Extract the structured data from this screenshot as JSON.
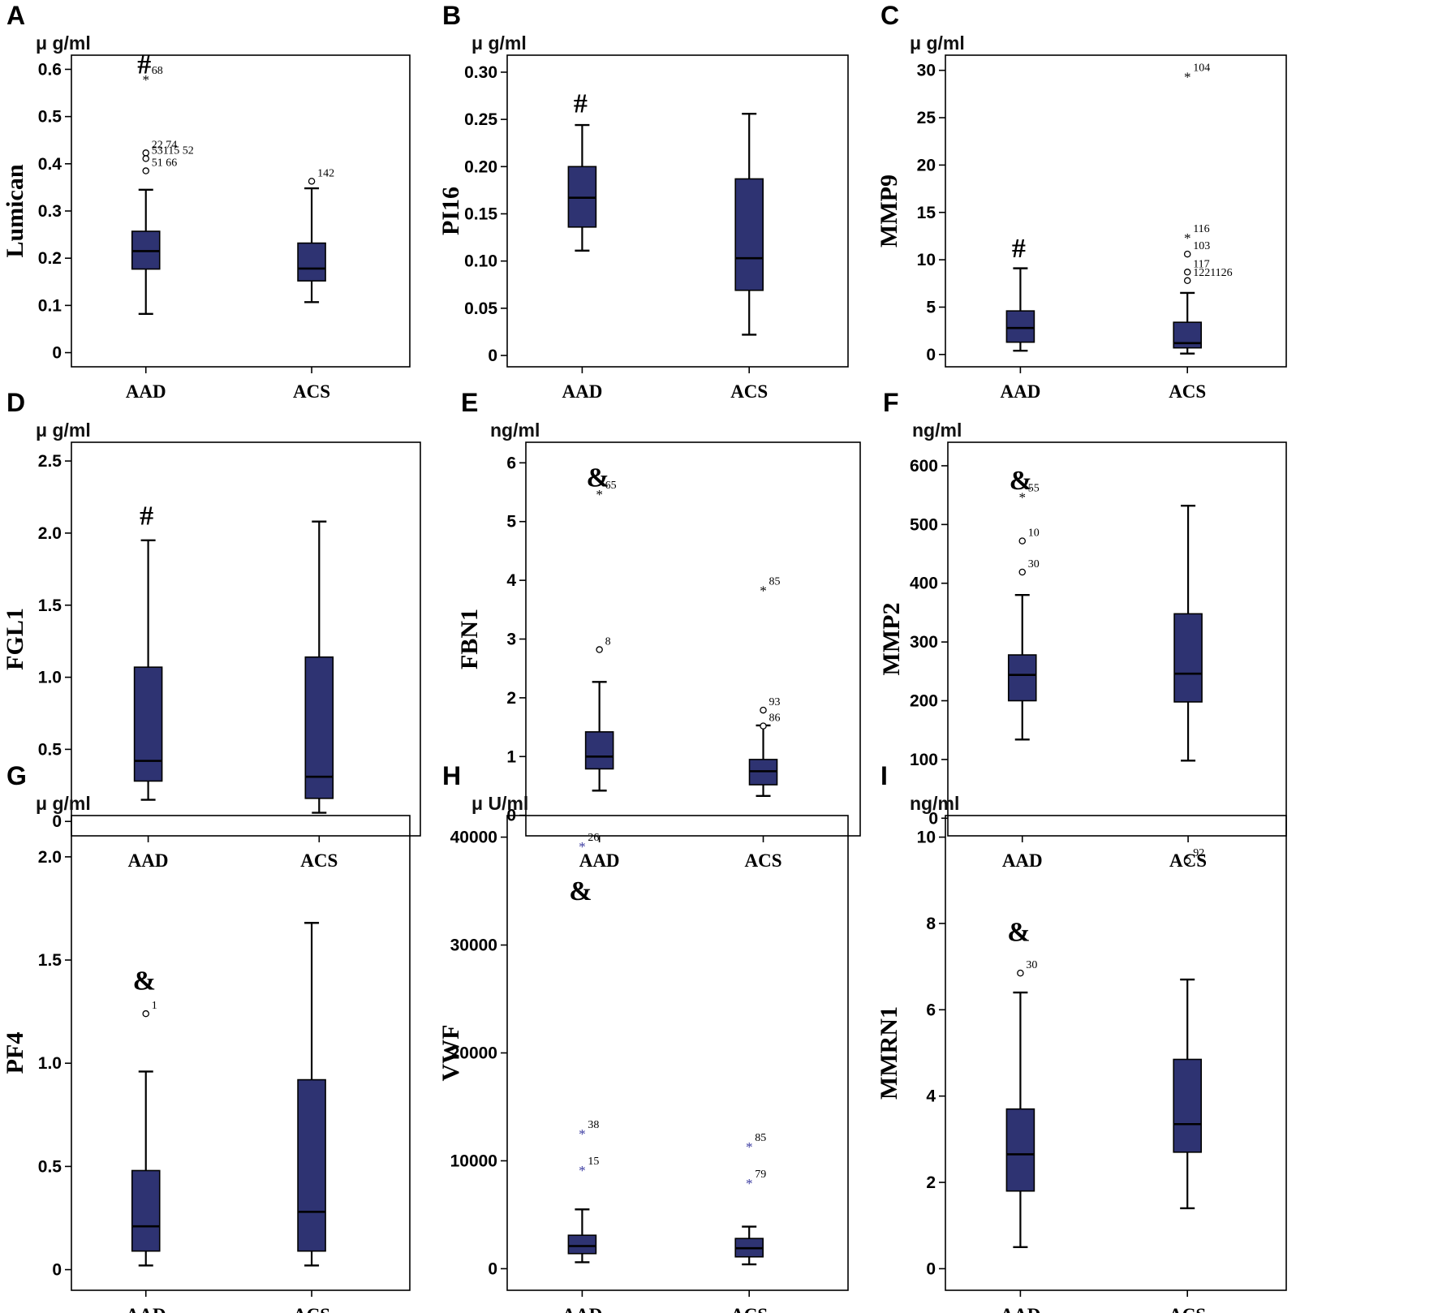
{
  "colors": {
    "box_fill": "#2e3372",
    "frame": "#000000",
    "background": "#ffffff",
    "star_blue": "#3a3aa0"
  },
  "categories": [
    "AAD",
    "ACS"
  ],
  "chart_data": [
    {
      "type": "box",
      "panel": "A",
      "unit": "μ g/ml",
      "ylabel": "Lumican",
      "ylim": [
        -0.03,
        0.63
      ],
      "yticks": [
        0,
        0.1,
        0.2,
        0.3,
        0.4,
        0.5,
        0.6
      ],
      "ytick_labels": [
        "0",
        "0.1",
        "0.2",
        "0.3",
        "0.4",
        "0.5",
        "0.6"
      ],
      "boxes": [
        {
          "category": "AAD",
          "whisker_low": 0.082,
          "q1": 0.177,
          "median": 0.215,
          "q3": 0.257,
          "whisker_high": 0.345,
          "outliers": [
            {
              "value": 0.58,
              "marker": "star",
              "label": "68"
            },
            {
              "value": 0.423,
              "marker": "circle",
              "label": "22   74"
            },
            {
              "value": 0.411,
              "marker": "circle",
              "label": "53115 52"
            },
            {
              "value": 0.385,
              "marker": "circle",
              "label": "51   66"
            }
          ],
          "significance": "#",
          "significance_value": 0.61
        },
        {
          "category": "ACS",
          "whisker_low": 0.107,
          "q1": 0.152,
          "median": 0.178,
          "q3": 0.232,
          "whisker_high": 0.348,
          "outliers": [
            {
              "value": 0.363,
              "marker": "circle",
              "label": "142"
            }
          ]
        }
      ]
    },
    {
      "type": "box",
      "panel": "B",
      "unit": "μ g/ml",
      "ylabel": "PI16",
      "ylim": [
        -0.012,
        0.318
      ],
      "yticks": [
        0,
        0.05,
        0.1,
        0.15,
        0.2,
        0.25,
        0.3
      ],
      "ytick_labels": [
        "0",
        "0.05",
        "0.10",
        "0.15",
        "0.20",
        "0.25",
        "0.30"
      ],
      "boxes": [
        {
          "category": "AAD",
          "whisker_low": 0.111,
          "q1": 0.136,
          "median": 0.167,
          "q3": 0.2,
          "whisker_high": 0.244,
          "outliers": [],
          "significance": "#",
          "significance_value": 0.267
        },
        {
          "category": "ACS",
          "whisker_low": 0.022,
          "q1": 0.069,
          "median": 0.103,
          "q3": 0.187,
          "whisker_high": 0.256,
          "outliers": []
        }
      ]
    },
    {
      "type": "box",
      "panel": "C",
      "unit": "μ g/ml",
      "ylabel": "MMP9",
      "ylim": [
        -1.3,
        31.6
      ],
      "yticks": [
        0,
        5,
        10,
        15,
        20,
        25,
        30
      ],
      "ytick_labels": [
        "0",
        "5",
        "10",
        "15",
        "20",
        "25",
        "30"
      ],
      "boxes": [
        {
          "category": "AAD",
          "whisker_low": 0.4,
          "q1": 1.3,
          "median": 2.8,
          "q3": 4.6,
          "whisker_high": 9.1,
          "outliers": [],
          "significance": "#",
          "significance_value": 11.2
        },
        {
          "category": "ACS",
          "whisker_low": 0.1,
          "q1": 0.7,
          "median": 1.2,
          "q3": 3.4,
          "whisker_high": 6.5,
          "outliers": [
            {
              "value": 29.4,
              "marker": "star",
              "label": "104"
            },
            {
              "value": 12.4,
              "marker": "star",
              "label": "116"
            },
            {
              "value": 10.6,
              "marker": "circle",
              "label": "103"
            },
            {
              "value": 8.7,
              "marker": "circle",
              "label": "117"
            },
            {
              "value": 7.8,
              "marker": "circle",
              "label": "1221126"
            }
          ]
        }
      ]
    },
    {
      "type": "box",
      "panel": "D",
      "unit": "μ g/ml",
      "ylabel": "FGL1",
      "ylim": [
        -0.1,
        2.63
      ],
      "yticks": [
        0,
        0.5,
        1.0,
        1.5,
        2.0,
        2.5
      ],
      "ytick_labels": [
        "0",
        "0.5",
        "1.0",
        "1.5",
        "2.0",
        "2.5"
      ],
      "boxes": [
        {
          "category": "AAD",
          "whisker_low": 0.15,
          "q1": 0.28,
          "median": 0.42,
          "q3": 1.07,
          "whisker_high": 1.95,
          "outliers": [],
          "significance": "#",
          "significance_value": 2.12
        },
        {
          "category": "ACS",
          "whisker_low": 0.06,
          "q1": 0.16,
          "median": 0.31,
          "q3": 1.14,
          "whisker_high": 2.08,
          "outliers": []
        }
      ]
    },
    {
      "type": "box",
      "panel": "E",
      "unit": "ng/ml",
      "ylabel": "FBN1",
      "ylim": [
        -0.35,
        6.35
      ],
      "yticks": [
        0,
        1,
        2,
        3,
        4,
        5,
        6
      ],
      "ytick_labels": [
        "0",
        "1",
        "2",
        "3",
        "4",
        "5",
        "6"
      ],
      "boxes": [
        {
          "category": "AAD",
          "whisker_low": 0.42,
          "q1": 0.79,
          "median": 1.0,
          "q3": 1.42,
          "whisker_high": 2.27,
          "outliers": [
            {
              "value": 5.48,
              "marker": "star",
              "label": "65"
            },
            {
              "value": 2.82,
              "marker": "circle",
              "label": "8"
            }
          ],
          "significance": "&",
          "significance_value": 5.75
        },
        {
          "category": "ACS",
          "whisker_low": 0.33,
          "q1": 0.52,
          "median": 0.75,
          "q3": 0.95,
          "whisker_high": 1.53,
          "outliers": [
            {
              "value": 3.84,
              "marker": "star",
              "label": "85"
            },
            {
              "value": 1.79,
              "marker": "circle",
              "label": "93"
            },
            {
              "value": 1.52,
              "marker": "circle",
              "label": "86"
            }
          ]
        }
      ]
    },
    {
      "type": "box",
      "panel": "F",
      "unit": "ng/ml",
      "ylabel": "MMP2",
      "ylim": [
        -30,
        640
      ],
      "yticks": [
        0,
        100,
        200,
        300,
        400,
        500,
        600
      ],
      "ytick_labels": [
        "0",
        "100",
        "200",
        "300",
        "400",
        "500",
        "600"
      ],
      "boxes": [
        {
          "category": "AAD",
          "whisker_low": 134,
          "q1": 200,
          "median": 244,
          "q3": 278,
          "whisker_high": 380,
          "outliers": [
            {
              "value": 548,
              "marker": "star",
              "label": "55"
            },
            {
              "value": 472,
              "marker": "circle",
              "label": "10"
            },
            {
              "value": 419,
              "marker": "circle",
              "label": "30"
            }
          ],
          "significance": "&",
          "significance_value": 575
        },
        {
          "category": "ACS",
          "whisker_low": 98,
          "q1": 198,
          "median": 246,
          "q3": 348,
          "whisker_high": 532,
          "outliers": []
        }
      ]
    },
    {
      "type": "box",
      "panel": "G",
      "unit": "μ g/ml",
      "ylabel": "PF4",
      "ylim": [
        -0.1,
        2.2
      ],
      "yticks": [
        0,
        0.5,
        1.0,
        1.5,
        2.0
      ],
      "ytick_labels": [
        "0",
        "0.5",
        "1.0",
        "1.5",
        "2.0"
      ],
      "boxes": [
        {
          "category": "AAD",
          "whisker_low": 0.02,
          "q1": 0.09,
          "median": 0.21,
          "q3": 0.48,
          "whisker_high": 0.96,
          "outliers": [
            {
              "value": 1.24,
              "marker": "circle",
              "label": "1"
            }
          ],
          "significance": "&",
          "significance_value": 1.4
        },
        {
          "category": "ACS",
          "whisker_low": 0.02,
          "q1": 0.09,
          "median": 0.28,
          "q3": 0.92,
          "whisker_high": 1.68,
          "outliers": []
        }
      ]
    },
    {
      "type": "box",
      "panel": "H",
      "unit": "μ U/ml",
      "ylabel": "VWF",
      "ylim": [
        -2000,
        42000
      ],
      "yticks": [
        0,
        10000,
        20000,
        30000,
        40000
      ],
      "ytick_labels": [
        "0",
        "10000",
        "20000",
        "30000",
        "40000"
      ],
      "boxes": [
        {
          "category": "AAD",
          "whisker_low": 600,
          "q1": 1400,
          "median": 2100,
          "q3": 3100,
          "whisker_high": 5500,
          "outliers": [
            {
              "value": 39200,
              "marker": "star",
              "label": "26"
            },
            {
              "value": 12600,
              "marker": "star",
              "label": "38"
            },
            {
              "value": 9200,
              "marker": "star",
              "label": "15"
            }
          ],
          "significance": "&",
          "significance_value": 35000
        },
        {
          "category": "ACS",
          "whisker_low": 400,
          "q1": 1100,
          "median": 1900,
          "q3": 2800,
          "whisker_high": 3900,
          "outliers": [
            {
              "value": 11400,
              "marker": "star",
              "label": "85"
            },
            {
              "value": 8000,
              "marker": "star",
              "label": "79"
            }
          ]
        }
      ]
    },
    {
      "type": "box",
      "panel": "I",
      "unit": "ng/ml",
      "ylabel": "MMRN1",
      "ylim": [
        -0.5,
        10.5
      ],
      "yticks": [
        0,
        2,
        4,
        6,
        8,
        10
      ],
      "ytick_labels": [
        "0",
        "2",
        "4",
        "6",
        "8",
        "10"
      ],
      "boxes": [
        {
          "category": "AAD",
          "whisker_low": 0.5,
          "q1": 1.8,
          "median": 2.65,
          "q3": 3.7,
          "whisker_high": 6.4,
          "outliers": [
            {
              "value": 6.85,
              "marker": "circle",
              "label": "30"
            }
          ],
          "significance": "&",
          "significance_value": 7.8
        },
        {
          "category": "ACS",
          "whisker_low": 1.4,
          "q1": 2.7,
          "median": 3.35,
          "q3": 4.85,
          "whisker_high": 6.7,
          "outliers": [
            {
              "value": 9.45,
              "marker": "circle",
              "label": "92"
            }
          ]
        }
      ]
    }
  ]
}
